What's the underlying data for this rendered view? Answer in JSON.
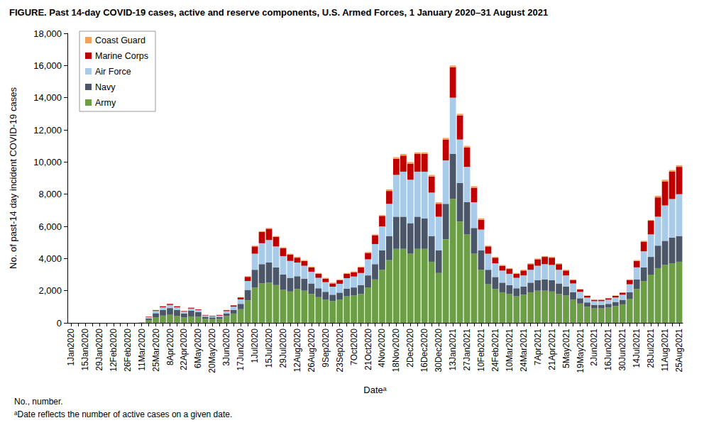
{
  "chart_data": {
    "type": "bar",
    "title": "FIGURE. Past 14-day COVID-19 cases, active and reserve components, U.S. Armed Forces, 1 January 2020–31 August 2021",
    "x_label": "Dateᵃ",
    "y_label": "No. of past-14 day incident COVID-19 cases",
    "annotations": [
      "No., number.",
      "ᵃDate reflects the number of active cases on a given date."
    ],
    "stacked": true,
    "grid": false,
    "legend": "upper left",
    "ylim": [
      0,
      18000
    ],
    "yticks": [
      0,
      {
        "value": 2000,
        "label": "2,000"
      },
      {
        "value": 4000,
        "label": "4,000"
      },
      {
        "value": 6000,
        "label": "6,000"
      },
      {
        "value": 8000,
        "label": "8,000"
      },
      {
        "value": 10000,
        "label": "10,000"
      },
      {
        "value": 12000,
        "label": "12,000"
      },
      {
        "value": 14000,
        "label": "14,000"
      },
      {
        "value": 16000,
        "label": "16,000"
      },
      {
        "value": 18000,
        "label": "18,000"
      }
    ],
    "categories": [
      "1Jan2020",
      null,
      "15Jan2020",
      null,
      "29Jan2020",
      null,
      "12Feb2020",
      null,
      "26Feb2020",
      null,
      "11Mar2020",
      null,
      "25Mar2020",
      null,
      "8Apr2020",
      null,
      "22Apr2020",
      null,
      "6May2020",
      null,
      "20May2020",
      null,
      "3Jun2020",
      null,
      "17Jun2020",
      null,
      "1Jul2020",
      null,
      "15Jul2020",
      null,
      "29Jul2020",
      null,
      "12Aug2020",
      null,
      "26Aug2020",
      null,
      "9Sep2020",
      null,
      "23Sep2020",
      null,
      "7Oct2020",
      null,
      "21Oct2020",
      null,
      "4Nov2020",
      null,
      "18Nov2020",
      null,
      "2Dec2020",
      null,
      "16Dec2020",
      null,
      "30Dec2020",
      null,
      "13Jan2021",
      null,
      "27Jan2021",
      null,
      "10Feb2021",
      null,
      "24Feb2021",
      null,
      "10Mar2021",
      null,
      "24Mar2021",
      null,
      "7Apr2021",
      null,
      "21Apr2021",
      null,
      "5May2021",
      null,
      "19May2021",
      null,
      "2Jun2021",
      null,
      "16Jun2021",
      null,
      "30Jun2021",
      null,
      "14Jul2021",
      null,
      "28Jul2021",
      null,
      "11Aug2021",
      null,
      "25Aug2021"
    ],
    "series": [
      {
        "name": "Army",
        "color": "#6b9e45",
        "values": [
          0,
          0,
          0,
          0,
          0,
          0,
          0,
          0,
          0,
          0,
          15,
          180,
          350,
          450,
          500,
          420,
          330,
          400,
          380,
          250,
          230,
          250,
          420,
          580,
          850,
          1400,
          2200,
          2450,
          2500,
          2350,
          2050,
          1950,
          2100,
          2000,
          1800,
          1600,
          1450,
          1350,
          1450,
          1650,
          1700,
          1800,
          2200,
          2700,
          3300,
          3900,
          4600,
          4600,
          4300,
          4600,
          4600,
          3800,
          3100,
          5200,
          7700,
          6300,
          5500,
          4300,
          3300,
          2400,
          2100,
          1900,
          1800,
          1650,
          1750,
          1900,
          2000,
          2000,
          1950,
          1800,
          1700,
          1450,
          1200,
          1000,
          900,
          900,
          950,
          1050,
          1150,
          1500,
          2100,
          2600,
          3000,
          3400,
          3600,
          3700,
          3800
        ]
      },
      {
        "name": "Navy",
        "color": "#4b5669",
        "values": [
          0,
          0,
          0,
          0,
          0,
          0,
          0,
          0,
          0,
          0,
          5,
          100,
          250,
          350,
          420,
          380,
          250,
          350,
          300,
          130,
          110,
          120,
          170,
          230,
          330,
          650,
          1100,
          1200,
          1250,
          1100,
          950,
          850,
          800,
          750,
          650,
          550,
          480,
          400,
          430,
          480,
          500,
          550,
          750,
          950,
          1200,
          1500,
          2000,
          2000,
          1900,
          2000,
          1900,
          1600,
          1400,
          2200,
          2800,
          2400,
          2000,
          1600,
          1200,
          900,
          750,
          600,
          550,
          500,
          500,
          600,
          650,
          700,
          700,
          650,
          550,
          450,
          330,
          270,
          220,
          220,
          230,
          250,
          280,
          400,
          600,
          850,
          1100,
          1400,
          1500,
          1600,
          1600
        ]
      },
      {
        "name": "Air Force",
        "color": "#a8cbe9",
        "values": [
          0,
          0,
          0,
          0,
          0,
          0,
          0,
          0,
          0,
          0,
          5,
          80,
          140,
          170,
          190,
          170,
          120,
          140,
          120,
          80,
          70,
          80,
          140,
          200,
          280,
          550,
          1000,
          1300,
          1400,
          1300,
          1150,
          1050,
          850,
          800,
          730,
          650,
          600,
          500,
          550,
          650,
          680,
          750,
          1000,
          1250,
          1500,
          2000,
          2600,
          2800,
          2700,
          2800,
          2900,
          2700,
          2100,
          2700,
          3500,
          2700,
          2200,
          1600,
          1300,
          1000,
          850,
          750,
          700,
          650,
          700,
          800,
          900,
          950,
          950,
          850,
          700,
          550,
          400,
          300,
          230,
          230,
          260,
          280,
          320,
          500,
          750,
          1000,
          1400,
          1800,
          2200,
          2400,
          2600
        ]
      },
      {
        "name": "Marine Corps",
        "color": "#c00000",
        "values": [
          0,
          0,
          0,
          0,
          0,
          0,
          0,
          0,
          0,
          0,
          3,
          30,
          50,
          60,
          70,
          60,
          40,
          50,
          40,
          30,
          30,
          40,
          60,
          80,
          120,
          260,
          450,
          700,
          700,
          600,
          500,
          400,
          300,
          300,
          270,
          250,
          220,
          200,
          220,
          270,
          270,
          350,
          400,
          550,
          650,
          800,
          1000,
          1000,
          1000,
          1100,
          1100,
          1000,
          800,
          1300,
          1900,
          1500,
          1200,
          900,
          600,
          450,
          350,
          300,
          300,
          250,
          300,
          350,
          400,
          450,
          450,
          350,
          300,
          220,
          150,
          110,
          80,
          80,
          90,
          100,
          130,
          270,
          400,
          600,
          850,
          1200,
          1500,
          1700,
          1700
        ]
      },
      {
        "name": "Coast Guard",
        "color": "#f4a259",
        "values": [
          0,
          0,
          0,
          0,
          0,
          0,
          0,
          0,
          0,
          0,
          2,
          10,
          10,
          20,
          20,
          20,
          10,
          10,
          10,
          10,
          10,
          10,
          10,
          10,
          20,
          40,
          50,
          50,
          50,
          50,
          50,
          50,
          50,
          50,
          50,
          50,
          50,
          50,
          50,
          50,
          50,
          50,
          50,
          50,
          50,
          100,
          100,
          100,
          100,
          100,
          100,
          100,
          100,
          100,
          100,
          100,
          100,
          100,
          100,
          50,
          50,
          50,
          50,
          50,
          50,
          50,
          50,
          50,
          50,
          50,
          50,
          30,
          20,
          20,
          20,
          20,
          20,
          20,
          20,
          30,
          50,
          50,
          50,
          100,
          100,
          100,
          100
        ]
      }
    ]
  }
}
